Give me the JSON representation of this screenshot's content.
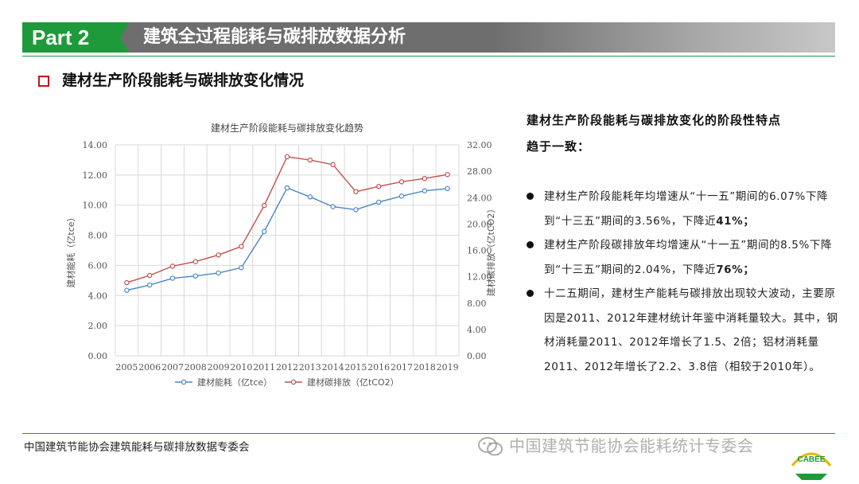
{
  "header": {
    "part_label": "Part 2",
    "title": "建筑全过程能耗与碳排放数据分析"
  },
  "section": {
    "title": "建材生产阶段能耗与碳排放变化情况"
  },
  "chart_data": {
    "type": "line",
    "title": "建材生产阶段能耗与碳排放变化趋势",
    "x": [
      "2005",
      "2006",
      "2007",
      "2008",
      "2009",
      "2010",
      "2011",
      "2012",
      "2013",
      "2014",
      "2015",
      "2016",
      "2017",
      "2018",
      "2019"
    ],
    "ylabel": "建材能耗（亿tce）",
    "y2label": "建材碳排放（亿tCO2）",
    "ylim": [
      0,
      14
    ],
    "y2lim": [
      0,
      32
    ],
    "yticks": [
      "0.00",
      "2.00",
      "4.00",
      "6.00",
      "8.00",
      "10.00",
      "12.00",
      "14.00"
    ],
    "y2ticks": [
      "0.00",
      "4.00",
      "8.00",
      "12.00",
      "16.00",
      "20.00",
      "24.00",
      "28.00",
      "32.00"
    ],
    "grid": true,
    "legend_position": "bottom",
    "series": [
      {
        "name": "建材能耗（亿tce）",
        "axis": "left",
        "color": "#4a86c5",
        "values": [
          4.35,
          4.7,
          5.15,
          5.3,
          5.5,
          5.85,
          8.25,
          11.15,
          10.55,
          9.9,
          9.7,
          10.2,
          10.6,
          10.95,
          11.1
        ]
      },
      {
        "name": "建材碳排放（亿tCO2）",
        "axis": "right",
        "color": "#c0504d",
        "values": [
          11.1,
          12.2,
          13.6,
          14.3,
          15.3,
          16.6,
          22.8,
          30.2,
          29.7,
          29.0,
          24.9,
          25.7,
          26.4,
          26.9,
          27.5
        ]
      }
    ]
  },
  "summary": {
    "heading_line1": "建材生产阶段能耗与碳排放变化的阶段性特点",
    "heading_line2": "趋于一致：",
    "bullets": [
      {
        "pre": "建材生产阶段能耗年均增速从“十一五”期间的6.07%下降到“十三五”期间的3.56%，下降近",
        "bold": "41%",
        "post": "；"
      },
      {
        "pre": "建材生产阶段碳排放年均增速从“十一五”期间的8.5%下降到“十三五”期间的2.04%，下降近",
        "bold": "76%",
        "post": "；"
      },
      {
        "pre": "十二五期间，建材生产能耗与碳排放出现较大波动，主要原因是2011、2012年建材统计年鉴中消耗量较大。其中，钢材消耗量2011、2012年增长了1.5、2倍；铝材消耗量2011、2012年增长了2.2、3.8倍（相较于2010年）。",
        "bold": "",
        "post": ""
      }
    ]
  },
  "footer": {
    "org": "中国建筑节能协会建筑能耗与碳排放数据专委会",
    "watermark": "中国建筑节能协会能耗统计专委会",
    "logo": "CABEE",
    "colors": {
      "green": "#1f9a3b",
      "red": "#c0171d"
    }
  }
}
